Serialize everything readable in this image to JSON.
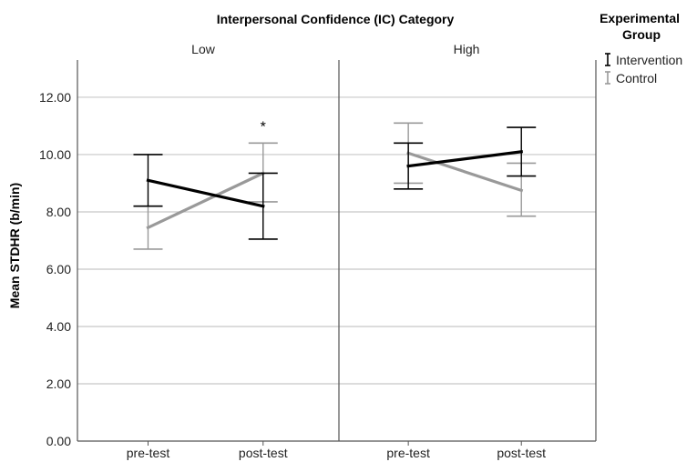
{
  "chart_data": {
    "type": "line",
    "title": "Interpersonal Confidence (IC) Category",
    "ylabel": "Mean STDHR (b/min)",
    "xlabel": "",
    "ylim": [
      0,
      13.3
    ],
    "yticks": [
      "0.00",
      "2.00",
      "4.00",
      "6.00",
      "8.00",
      "10.00",
      "12.00"
    ],
    "grid": true,
    "categories": [
      "pre-test",
      "post-test"
    ],
    "legend_title": "Experimental Group",
    "legend_position": "top-right",
    "panels": [
      {
        "label": "Low",
        "annotation": {
          "text": "*",
          "category": "post-test",
          "y": 11.1
        },
        "series": [
          {
            "name": "Intervention",
            "color": "#000000",
            "values": [
              9.1,
              8.2
            ],
            "err_low": [
              8.2,
              7.05
            ],
            "err_high": [
              10.0,
              9.35
            ]
          },
          {
            "name": "Control",
            "color": "#999999",
            "values": [
              7.45,
              9.35
            ],
            "err_low": [
              6.7,
              8.35
            ],
            "err_high": [
              8.2,
              10.4
            ]
          }
        ]
      },
      {
        "label": "High",
        "series": [
          {
            "name": "Intervention",
            "color": "#000000",
            "values": [
              9.6,
              10.1
            ],
            "err_low": [
              8.8,
              9.25
            ],
            "err_high": [
              10.4,
              10.95
            ]
          },
          {
            "name": "Control",
            "color": "#999999",
            "values": [
              10.05,
              8.75
            ],
            "err_low": [
              9.0,
              7.85
            ],
            "err_high": [
              11.1,
              9.7
            ]
          }
        ]
      }
    ]
  }
}
